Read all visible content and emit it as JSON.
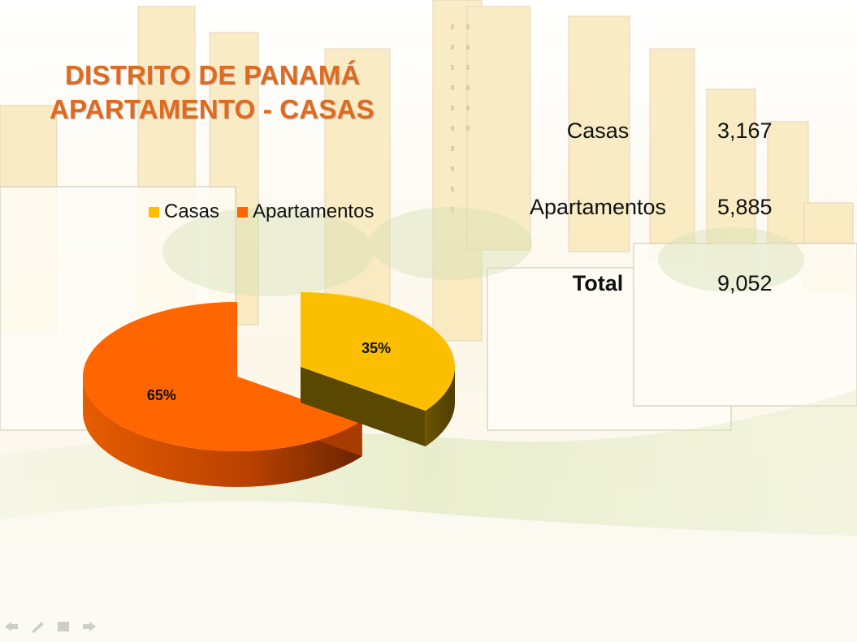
{
  "slide": {
    "title_line1": "DISTRITO DE PANAMÁ",
    "title_line2": "APARTAMENTO - CASAS"
  },
  "table": {
    "rows": [
      {
        "label": "Casas",
        "value": "3,167",
        "bold": false
      },
      {
        "label": "Apartamentos",
        "value": "5,885",
        "bold": false
      },
      {
        "label": "Total",
        "value": "9,052",
        "bold": true
      }
    ]
  },
  "chart_data": {
    "type": "pie",
    "style": "3d-exploded",
    "categories": [
      "Casas",
      "Apartamentos"
    ],
    "values": [
      35,
      65
    ],
    "value_labels": [
      "35%",
      "65%"
    ],
    "colors": [
      "#fbbf00",
      "#ff6600"
    ],
    "legend": {
      "position": "top",
      "entries": [
        "Casas",
        "Apartamentos"
      ]
    }
  },
  "nav": {
    "icons": [
      "back-arrow-icon",
      "pen-icon",
      "menu-icon",
      "forward-arrow-icon"
    ]
  }
}
